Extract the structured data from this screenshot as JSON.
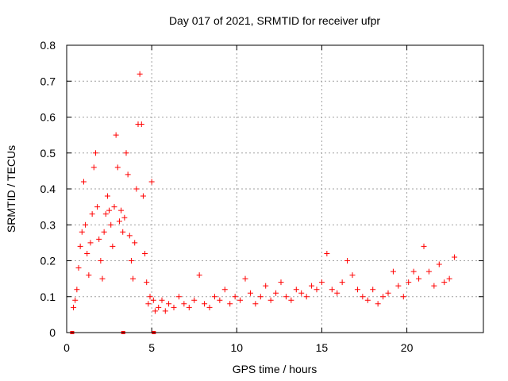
{
  "chart_data": {
    "type": "scatter",
    "title": "Day 017 of 2021, SRMTID for receiver ufpr",
    "xlabel": "GPS time / hours",
    "ylabel": "SRMTID / TECUs",
    "xlim": [
      0,
      24.5
    ],
    "ylim": [
      0,
      0.8
    ],
    "xticks": [
      0,
      5,
      10,
      15,
      20
    ],
    "xtick_labels": [
      "0",
      "5",
      "10",
      "15",
      "20"
    ],
    "yticks": [
      0,
      0.1,
      0.2,
      0.3,
      0.4,
      0.5,
      0.6,
      0.7,
      0.8
    ],
    "ytick_labels": [
      "0",
      "0.1",
      "0.2",
      "0.3",
      "0.4",
      "0.5",
      "0.6",
      "0.7",
      "0.8"
    ],
    "grid": true,
    "marker": "plus",
    "color": "#ff0000",
    "gap_markers_x": [
      0.3,
      3.3,
      5.1
    ],
    "series": [
      {
        "name": "SRMTID",
        "x": [
          0.4,
          0.5,
          0.6,
          0.7,
          0.8,
          0.9,
          1.0,
          1.1,
          1.2,
          1.3,
          1.4,
          1.5,
          1.6,
          1.7,
          1.8,
          1.9,
          2.0,
          2.1,
          2.2,
          2.3,
          2.4,
          2.5,
          2.6,
          2.7,
          2.8,
          2.9,
          3.0,
          3.1,
          3.2,
          3.3,
          3.4,
          3.5,
          3.6,
          3.7,
          3.8,
          3.9,
          4.0,
          4.1,
          4.2,
          4.3,
          4.4,
          4.5,
          4.6,
          4.7,
          4.8,
          4.9,
          5.0,
          5.1,
          5.2,
          5.4,
          5.6,
          5.8,
          6.0,
          6.3,
          6.6,
          6.9,
          7.2,
          7.5,
          7.8,
          8.1,
          8.4,
          8.7,
          9.0,
          9.3,
          9.6,
          9.9,
          10.2,
          10.5,
          10.8,
          11.1,
          11.4,
          11.7,
          12.0,
          12.3,
          12.6,
          12.9,
          13.2,
          13.5,
          13.8,
          14.1,
          14.4,
          14.7,
          15.0,
          15.3,
          15.6,
          15.9,
          16.2,
          16.5,
          16.8,
          17.1,
          17.4,
          17.7,
          18.0,
          18.3,
          18.6,
          18.9,
          19.2,
          19.5,
          19.8,
          20.1,
          20.4,
          20.7,
          21.0,
          21.3,
          21.6,
          21.9,
          22.2,
          22.5,
          22.8
        ],
        "y": [
          0.07,
          0.09,
          0.12,
          0.18,
          0.24,
          0.28,
          0.42,
          0.3,
          0.22,
          0.16,
          0.25,
          0.33,
          0.46,
          0.5,
          0.35,
          0.26,
          0.2,
          0.15,
          0.28,
          0.33,
          0.38,
          0.34,
          0.3,
          0.24,
          0.35,
          0.55,
          0.46,
          0.31,
          0.34,
          0.28,
          0.32,
          0.5,
          0.44,
          0.27,
          0.2,
          0.15,
          0.25,
          0.4,
          0.58,
          0.72,
          0.58,
          0.38,
          0.22,
          0.14,
          0.08,
          0.1,
          0.42,
          0.09,
          0.06,
          0.07,
          0.09,
          0.06,
          0.08,
          0.07,
          0.1,
          0.08,
          0.07,
          0.09,
          0.16,
          0.08,
          0.07,
          0.1,
          0.09,
          0.12,
          0.08,
          0.1,
          0.09,
          0.15,
          0.11,
          0.08,
          0.1,
          0.13,
          0.09,
          0.11,
          0.14,
          0.1,
          0.09,
          0.12,
          0.11,
          0.1,
          0.13,
          0.12,
          0.14,
          0.22,
          0.12,
          0.11,
          0.14,
          0.2,
          0.16,
          0.12,
          0.1,
          0.09,
          0.12,
          0.08,
          0.1,
          0.11,
          0.17,
          0.13,
          0.1,
          0.14,
          0.17,
          0.15,
          0.24,
          0.17,
          0.13,
          0.19,
          0.14,
          0.15,
          0.21
        ]
      }
    ]
  }
}
